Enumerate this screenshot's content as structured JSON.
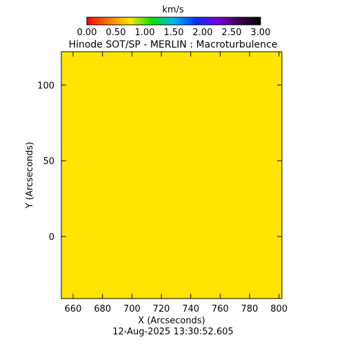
{
  "chart_data": {
    "type": "heatmap",
    "title": "Hinode SOT/SP - MERLIN : Macroturbulence",
    "xlabel": "X (Arcseconds)",
    "ylabel": "Y (Arcseconds)",
    "timestamp": "12-Aug-2025 13:30:52.605",
    "xlim": [
      652,
      802
    ],
    "ylim": [
      -41,
      122
    ],
    "x_ticks": [
      660,
      680,
      700,
      720,
      740,
      760,
      780,
      800
    ],
    "x_tick_labels": [
      "660",
      "680",
      "700",
      "720",
      "740",
      "760",
      "780",
      "800"
    ],
    "y_ticks": [
      0,
      50,
      100
    ],
    "y_tick_labels": [
      "0",
      "50",
      "100"
    ],
    "grid": false,
    "map_value_kms": 1.0,
    "map_color": "#ffe500",
    "colorbar": {
      "label": "km/s",
      "range": [
        0,
        3
      ],
      "ticks": [
        0,
        0.5,
        1.0,
        1.5,
        2.0,
        2.5,
        3.0
      ],
      "tick_labels": [
        "0.00",
        "0.50",
        "1.00",
        "1.50",
        "2.00",
        "2.50",
        "3.00"
      ],
      "colors": [
        "#ff0000",
        "#ff7a00",
        "#ffe600",
        "#00e600",
        "#00b4ff",
        "#0033ff",
        "#7a00e6",
        "#3a0050",
        "#000000"
      ]
    }
  }
}
